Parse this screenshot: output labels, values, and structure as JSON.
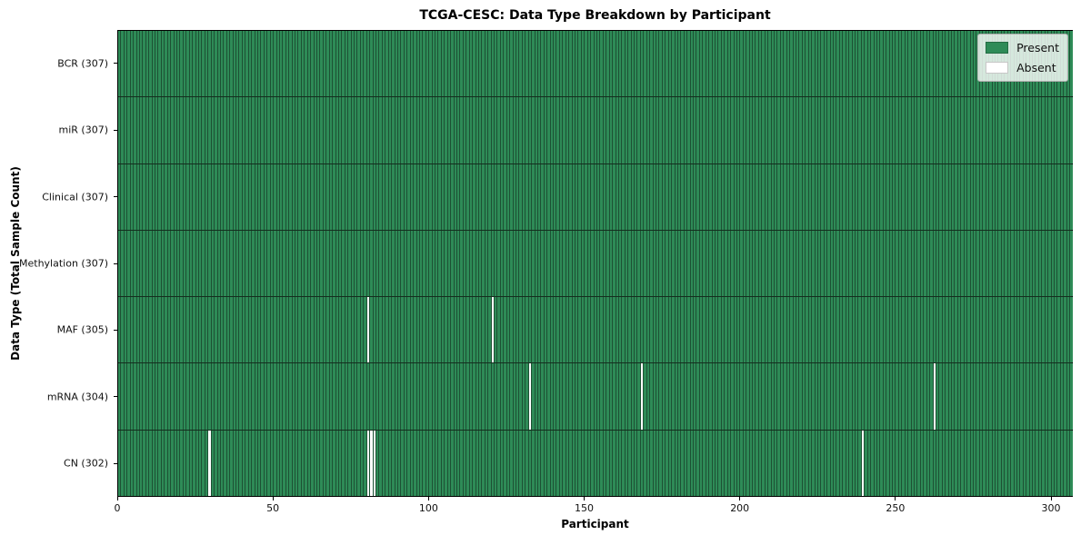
{
  "figure": {
    "title": "TCGA-CESC: Data Type Breakdown by Participant"
  },
  "chart_data": {
    "type": "heatmap",
    "title": "TCGA-CESC: Data Type Breakdown by Participant",
    "xlabel": "Participant",
    "ylabel": "Data Type (Total Sample Count)",
    "x_ticks": [
      0,
      50,
      100,
      150,
      200,
      250,
      300
    ],
    "x_range": [
      0,
      307
    ],
    "n_participants": 307,
    "grid": "vertical-cell-borders",
    "colors": {
      "present": "#2e8b57",
      "absent": "#ffffff",
      "grid": "#1d5134",
      "divider": "#142e1e"
    },
    "legend": {
      "position": "top-right",
      "entries": [
        {
          "label": "Present",
          "color": "#2e8b57"
        },
        {
          "label": "Absent",
          "color": "#ffffff"
        }
      ]
    },
    "rows": [
      {
        "label": "BCR (307)",
        "name": "BCR",
        "total": 307,
        "absent": []
      },
      {
        "label": "miR (307)",
        "name": "miR",
        "total": 307,
        "absent": []
      },
      {
        "label": "Clinical (307)",
        "name": "Clinical",
        "total": 307,
        "absent": []
      },
      {
        "label": "Methylation (307)",
        "name": "Methylation",
        "total": 307,
        "absent": []
      },
      {
        "label": "MAF (305)",
        "name": "MAF",
        "total": 305,
        "absent": [
          80,
          120
        ]
      },
      {
        "label": "mRNA (304)",
        "name": "mRNA",
        "total": 304,
        "absent": [
          132,
          168,
          262
        ]
      },
      {
        "label": "CN (302)",
        "name": "CN",
        "total": 302,
        "absent": [
          29,
          80,
          81,
          82,
          239
        ]
      }
    ]
  }
}
